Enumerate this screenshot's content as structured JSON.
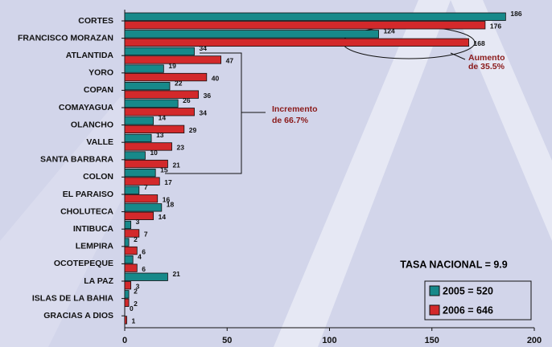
{
  "chart_data": {
    "type": "bar",
    "orientation": "horizontal",
    "categories": [
      "CORTES",
      "FRANCISCO MORAZAN",
      "ATLANTIDA",
      "YORO",
      "COPAN",
      "COMAYAGUA",
      "OLANCHO",
      "VALLE",
      "SANTA BARBARA",
      "COLON",
      "EL PARAISO",
      "CHOLUTECA",
      "INTIBUCA",
      "LEMPIRA",
      "OCOTEPEQUE",
      "LA PAZ",
      "ISLAS DE LA BAHIA",
      "GRACIAS A DIOS"
    ],
    "series": [
      {
        "name": "2005 = 520",
        "color": "#17898a",
        "values": [
          186,
          124,
          34,
          19,
          22,
          26,
          14,
          13,
          10,
          15,
          7,
          18,
          3,
          2,
          4,
          21,
          2,
          0
        ]
      },
      {
        "name": "2006 = 646",
        "color": "#d3292b",
        "values": [
          176,
          168,
          47,
          40,
          36,
          34,
          29,
          23,
          21,
          17,
          16,
          14,
          7,
          6,
          6,
          3,
          2,
          1
        ]
      }
    ],
    "xlim": [
      0,
      200
    ],
    "xticks": [
      0,
      50,
      100,
      150,
      200
    ],
    "annotations": [
      {
        "lines": [
          "Aumento",
          "de 35.5%"
        ]
      },
      {
        "lines": [
          "Incremento",
          "de 66.7%"
        ]
      }
    ],
    "note": "TASA NACIONAL = 9.9",
    "legend": "lower right"
  }
}
